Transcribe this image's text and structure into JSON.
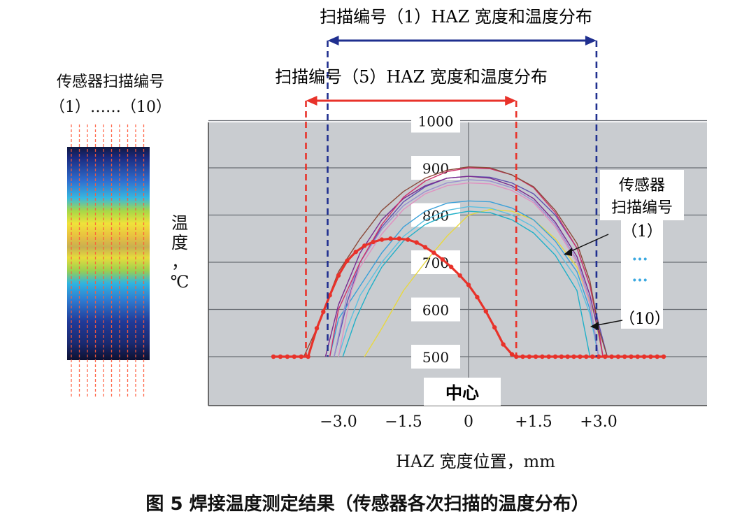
{
  "figure": {
    "caption": "图 5  焊接温度测定结果（传感器各次扫描的温度分布）",
    "sensor_scan_title": [
      "传感器扫描编号",
      "（1）……（10）"
    ],
    "scan1_span_label": "扫描编号（1）HAZ 宽度和温度分布",
    "scan5_span_label": "扫描编号（5）HAZ 宽度和温度分布",
    "legend_title": [
      "传感器",
      "扫描编号"
    ],
    "legend_first": "（1）",
    "legend_dots": "···",
    "legend_last": "（10）",
    "center_label": "中心",
    "colors": {
      "scan1_marker": "#1f2f8f",
      "scan5_marker": "#e8322a",
      "plot_bg": "#c9ccd0"
    }
  },
  "chart_data": {
    "type": "line",
    "xlabel": "HAZ 宽度位置，mm",
    "ylabel": "温度，℃",
    "x_ticks": [
      "−3.0",
      "−1.5",
      "0",
      "+1.5",
      "+3.0"
    ],
    "y_ticks": [
      "1000",
      "900",
      "800",
      "700",
      "600",
      "500"
    ],
    "xlim": [
      -4.5,
      4.5
    ],
    "ylim": [
      450,
      1000
    ],
    "grid": true,
    "scan1_span": [
      -3.25,
      2.95
    ],
    "scan5_span": [
      -3.75,
      1.1
    ],
    "series": [
      {
        "color": "#e8322a",
        "bold": true,
        "markers": true,
        "x": [
          -4.5,
          -3.7,
          -3.5,
          -3.2,
          -3.0,
          -2.8,
          -2.6,
          -2.4,
          -2.2,
          -2.0,
          -1.8,
          -1.6,
          -1.4,
          -1.2,
          -1.0,
          -0.8,
          -0.6,
          -0.4,
          -0.2,
          0.0,
          0.2,
          0.4,
          0.6,
          0.8,
          1.0,
          1.1,
          2.0,
          3.0,
          4.5
        ],
        "y": [
          500,
          500,
          560,
          630,
          672,
          703,
          722,
          735,
          743,
          748,
          750,
          750,
          748,
          742,
          732,
          720,
          706,
          690,
          672,
          652,
          626,
          596,
          562,
          526,
          505,
          500,
          500,
          500,
          500
        ]
      },
      {
        "color": "#8b4a3a",
        "x": [
          -3.8,
          -3.5,
          -3.0,
          -2.5,
          -2.0,
          -1.5,
          -1.0,
          -0.5,
          0.0,
          0.5,
          1.0,
          1.5,
          2.0,
          2.5,
          2.8,
          3.0,
          3.2
        ],
        "y": [
          500,
          560,
          680,
          750,
          810,
          850,
          878,
          895,
          902,
          900,
          885,
          860,
          810,
          740,
          660,
          560,
          500
        ]
      },
      {
        "color": "#d0306a",
        "x": [
          -3.2,
          -3.0,
          -2.5,
          -2.0,
          -1.5,
          -1.0,
          -0.5,
          0.0,
          0.5,
          1.0,
          1.5,
          2.0,
          2.5,
          2.8,
          3.0,
          3.1
        ],
        "y": [
          500,
          600,
          700,
          780,
          838,
          872,
          892,
          900,
          898,
          885,
          858,
          805,
          730,
          650,
          560,
          500
        ]
      },
      {
        "color": "#7a2a90",
        "x": [
          -3.3,
          -3.0,
          -2.5,
          -2.0,
          -1.5,
          -1.0,
          -0.5,
          0.0,
          0.5,
          1.0,
          1.5,
          2.0,
          2.5,
          2.8,
          3.0,
          3.1
        ],
        "y": [
          500,
          610,
          720,
          790,
          835,
          862,
          878,
          882,
          878,
          862,
          835,
          785,
          712,
          630,
          550,
          500
        ]
      },
      {
        "color": "#9a8fd0",
        "x": [
          -3.1,
          -2.8,
          -2.5,
          -2.0,
          -1.5,
          -1.0,
          -0.5,
          0.0,
          0.5,
          1.0,
          1.5,
          2.0,
          2.5,
          2.8,
          3.0
        ],
        "y": [
          500,
          630,
          700,
          770,
          820,
          850,
          868,
          875,
          872,
          858,
          830,
          780,
          705,
          620,
          500
        ]
      },
      {
        "color": "#e090c0",
        "x": [
          -3.0,
          -2.7,
          -2.5,
          -2.0,
          -1.5,
          -1.0,
          -0.5,
          0.0,
          0.5,
          1.0,
          1.5,
          2.0,
          2.5,
          2.8,
          3.0
        ],
        "y": [
          500,
          640,
          690,
          760,
          812,
          845,
          862,
          868,
          866,
          852,
          826,
          775,
          700,
          610,
          500
        ]
      },
      {
        "color": "#3aa0d8",
        "x": [
          -3.2,
          -3.0,
          -2.5,
          -2.0,
          -1.5,
          -1.0,
          -0.5,
          0.0,
          0.5,
          1.0,
          1.5,
          2.0,
          2.5,
          2.8,
          3.0
        ],
        "y": [
          500,
          580,
          650,
          720,
          775,
          808,
          825,
          830,
          828,
          815,
          790,
          745,
          680,
          600,
          500
        ]
      },
      {
        "color": "#5cc0e0",
        "x": [
          -3.0,
          -2.8,
          -2.5,
          -2.0,
          -1.5,
          -1.0,
          -0.5,
          0.0,
          0.5,
          1.0,
          1.5,
          2.0,
          2.5,
          2.8,
          3.0
        ],
        "y": [
          500,
          560,
          630,
          700,
          755,
          790,
          810,
          818,
          815,
          800,
          775,
          730,
          665,
          590,
          500
        ]
      },
      {
        "color": "#20b0c8",
        "x": [
          -2.9,
          -2.6,
          -2.3,
          -2.0,
          -1.5,
          -1.0,
          -0.5,
          0.0,
          0.5,
          1.0,
          1.5,
          2.0,
          2.5,
          2.8
        ],
        "y": [
          500,
          580,
          640,
          690,
          745,
          780,
          800,
          808,
          805,
          790,
          762,
          715,
          640,
          500
        ]
      },
      {
        "color": "#e8d840",
        "x": [
          -2.4,
          -2.0,
          -1.5,
          -1.0,
          -0.5,
          0.0,
          0.5,
          1.0,
          1.5,
          2.0,
          2.5,
          2.9,
          3.1
        ],
        "y": [
          500,
          560,
          640,
          700,
          755,
          800,
          812,
          808,
          790,
          750,
          690,
          590,
          500
        ]
      },
      {
        "color": "#6050b0",
        "x": [
          -3.1,
          -2.8,
          -2.5,
          -2.0,
          -1.5,
          -1.0,
          -0.5,
          0.0,
          0.5,
          1.0,
          1.5,
          2.0,
          2.5,
          2.8,
          3.0,
          3.2
        ],
        "y": [
          500,
          615,
          700,
          775,
          828,
          860,
          878,
          882,
          880,
          868,
          845,
          800,
          730,
          650,
          570,
          500
        ]
      }
    ]
  }
}
